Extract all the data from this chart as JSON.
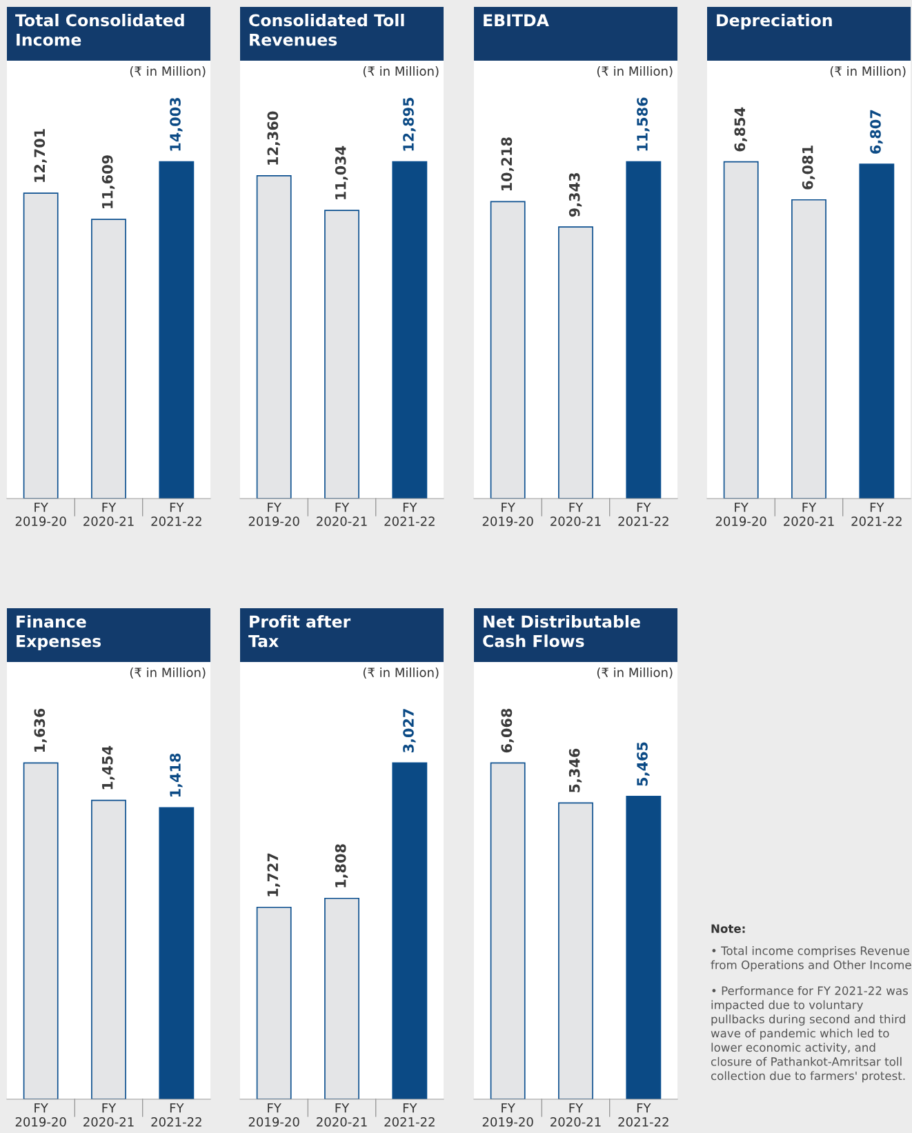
{
  "chart_data": [
    {
      "type": "bar",
      "title": "Total Consolidated\nIncome",
      "subtitle": "(₹ in Million)",
      "categories": [
        "FY\n2019-20",
        "FY\n2020-21",
        "FY\n2021-22"
      ],
      "values": [
        12701,
        11609,
        14003
      ],
      "colors": [
        "#e4e5e7",
        "#e4e5e7",
        "#0b4a85"
      ],
      "value_labels": [
        "12,701",
        "11,609",
        "14,003"
      ]
    },
    {
      "type": "bar",
      "title": "Consolidated Toll\nRevenues",
      "subtitle": "(₹ in Million)",
      "categories": [
        "FY\n2019-20",
        "FY\n2020-21",
        "FY\n2021-22"
      ],
      "values": [
        12360,
        11034,
        12895
      ],
      "colors": [
        "#e4e5e7",
        "#e4e5e7",
        "#0b4a85"
      ],
      "value_labels": [
        "12,360",
        "11,034",
        "12,895"
      ]
    },
    {
      "type": "bar",
      "title": "EBITDA",
      "subtitle": "(₹ in Million)",
      "categories": [
        "FY\n2019-20",
        "FY\n2020-21",
        "FY\n2021-22"
      ],
      "values": [
        10218,
        9343,
        11586
      ],
      "colors": [
        "#e4e5e7",
        "#e4e5e7",
        "#0b4a85"
      ],
      "value_labels": [
        "10,218",
        "9,343",
        "11,586"
      ]
    },
    {
      "type": "bar",
      "title": "Depreciation",
      "subtitle": "(₹ in Million)",
      "categories": [
        "FY\n2019-20",
        "FY\n2020-21",
        "FY\n2021-22"
      ],
      "values": [
        6854,
        6081,
        6807
      ],
      "colors": [
        "#e4e5e7",
        "#e4e5e7",
        "#0b4a85"
      ],
      "value_labels": [
        "6,854",
        "6,081",
        "6,807"
      ]
    },
    {
      "type": "bar",
      "title": "Finance\nExpenses",
      "subtitle": "(₹ in Million)",
      "categories": [
        "FY\n2019-20",
        "FY\n2020-21",
        "FY\n2021-22"
      ],
      "values": [
        1636,
        1454,
        1418
      ],
      "colors": [
        "#e4e5e7",
        "#e4e5e7",
        "#0b4a85"
      ],
      "value_labels": [
        "1,636",
        "1,454",
        "1,418"
      ]
    },
    {
      "type": "bar",
      "title": "Profit after\nTax",
      "subtitle": "(₹ in Million)",
      "categories": [
        "FY\n2019-20",
        "FY\n2020-21",
        "FY\n2021-22"
      ],
      "values": [
        1727,
        1808,
        3027
      ],
      "colors": [
        "#e4e5e7",
        "#e4e5e7",
        "#0b4a85"
      ],
      "value_labels": [
        "1,727",
        "1,808",
        "3,027"
      ]
    },
    {
      "type": "bar",
      "title": "Net Distributable\nCash Flows",
      "subtitle": "(₹ in Million)",
      "categories": [
        "FY\n2019-20",
        "FY\n2020-21",
        "FY\n2021-22"
      ],
      "values": [
        6068,
        5346,
        5465
      ],
      "colors": [
        "#e4e5e7",
        "#e4e5e7",
        "#0b4a85"
      ],
      "value_labels": [
        "6,068",
        "5,346",
        "5,465"
      ]
    },
    {
      "type": "other",
      "title": "Note:",
      "annotations": [
        "• Total income comprises Revenue from Operations and Other Income",
        "• Performance for FY 2021-22 was impacted due to voluntary pullbacks during second and third wave of pandemic which led to lower economic activity, and closure of Pathankot-Amritsar toll collection due to farmers' protest."
      ]
    }
  ]
}
